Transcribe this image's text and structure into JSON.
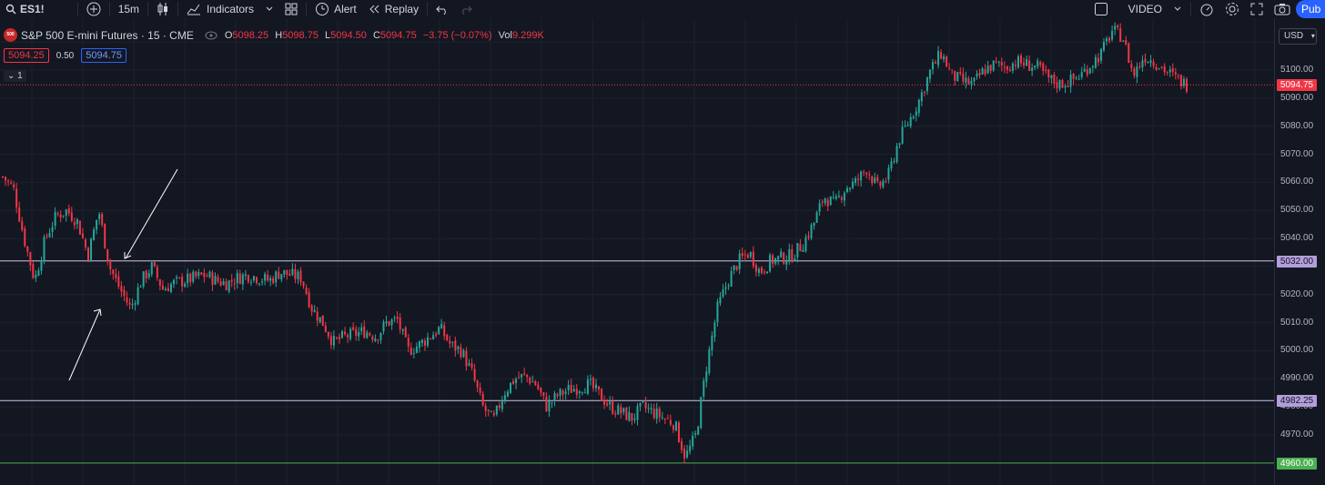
{
  "toolbar": {
    "symbol": "ES1!",
    "interval": "15m",
    "indicators_label": "Indicators",
    "alert_label": "Alert",
    "replay_label": "Replay",
    "video_label": "VIDEO",
    "publish_label": "Pub"
  },
  "legend": {
    "badge": "500",
    "title": "S&P 500 E-mini Futures · 15 · CME",
    "open_label": "O",
    "open": "5098.25",
    "high_label": "H",
    "high": "5098.75",
    "low_label": "L",
    "low": "5094.50",
    "close_label": "C",
    "close": "5094.75",
    "change": "−3.75 (−0.07%)",
    "vol_label": "Vol",
    "volume": "9.299K",
    "bid": "5094.25",
    "spread": "0.50",
    "ask": "5094.75",
    "collapse_label": "1"
  },
  "price_axis": {
    "currency": "USD",
    "ticks": [
      "5100.00",
      "5090.00",
      "5080.00",
      "5070.00",
      "5060.00",
      "5050.00",
      "5040.00",
      "5020.00",
      "5010.00",
      "5000.00",
      "4990.00",
      "4980.00",
      "4970.00"
    ],
    "last_price_tag": "5094.75",
    "level_tags": [
      "5032.00",
      "4982.25",
      "4960.00"
    ]
  },
  "colors": {
    "up": "#26a69a",
    "down": "#f23645",
    "background": "#131722",
    "level_line": "#d1c4e9",
    "support_line": "#4caf50",
    "last_price": "#f23645"
  },
  "chart_data": {
    "type": "candlestick",
    "interval": "15",
    "ylim": [
      4958,
      5117
    ],
    "horizontal_levels": [
      5032.0,
      4982.25,
      4960.0
    ],
    "last_price": 5094.75,
    "close_path": [
      5062,
      5058,
      5040,
      5025,
      5040,
      5048,
      5050,
      5046,
      5034,
      5050,
      5030,
      5022,
      5015,
      5025,
      5030,
      5022,
      5024,
      5025,
      5026,
      5027,
      5025,
      5024,
      5026,
      5027,
      5026,
      5025,
      5028,
      5027,
      5026,
      5015,
      5010,
      5003,
      5005,
      5006,
      5007,
      5005,
      5010,
      5011,
      5000,
      5002,
      5005,
      5008,
      5002,
      5000,
      4992,
      4980,
      4975,
      4985,
      4990,
      4991,
      4988,
      4980,
      4984,
      4986,
      4987,
      4988,
      4984,
      4980,
      4978,
      4976,
      4980,
      4978,
      4976,
      4974,
      4962,
      4970,
      4995,
      5015,
      5025,
      5032,
      5035,
      5028,
      5032,
      5033,
      5034,
      5038,
      5045,
      5055,
      5052,
      5058,
      5060,
      5065,
      5058,
      5062,
      5075,
      5082,
      5090,
      5100,
      5106,
      5098,
      5096,
      5095,
      5100,
      5102,
      5101,
      5103,
      5102,
      5101,
      5097,
      5095,
      5096,
      5098,
      5102,
      5106,
      5114,
      5112,
      5098,
      5105,
      5103,
      5100,
      5097,
      5094.75
    ]
  }
}
